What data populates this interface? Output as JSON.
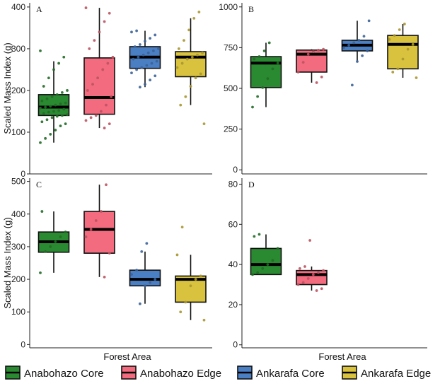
{
  "chart_data": {
    "type": "boxplot",
    "ylabel": "Scaled Mass Index (g)",
    "xlabel": "Forest Area",
    "legend": {
      "placement": "bottom",
      "entries": [
        {
          "name": "Anabohazo Core",
          "color": "#2a8a31"
        },
        {
          "name": "Anabohazo Edge",
          "color": "#f26b7e"
        },
        {
          "name": "Ankarafa Core",
          "color": "#4b7fc4"
        },
        {
          "name": "Ankarafa Edge",
          "color": "#d9c23e"
        }
      ]
    },
    "panels": [
      {
        "label": "A",
        "ylim": [
          0,
          410
        ],
        "yticks": [
          0,
          100,
          200,
          300,
          400
        ],
        "boxes": [
          {
            "group": "Anabohazo Core",
            "whisker_low": 75,
            "q1": 140,
            "median": 160,
            "q3": 190,
            "whisker_high": 270,
            "points": [
              75,
              85,
              95,
              105,
              115,
              120,
              125,
              130,
              135,
              138,
              140,
              142,
              145,
              148,
              150,
              152,
              155,
              158,
              160,
              162,
              165,
              168,
              170,
              175,
              180,
              185,
              190,
              195,
              200,
              210,
              230,
              250,
              265,
              280,
              295
            ]
          },
          {
            "group": "Anabohazo Edge",
            "whisker_low": 110,
            "q1": 143,
            "median": 183,
            "q3": 278,
            "whisker_high": 398,
            "points": [
              110,
              120,
              128,
              135,
              140,
              150,
              165,
              185,
              200,
              215,
              230,
              250,
              265,
              280,
              300,
              320,
              340,
              365,
              385,
              398
            ]
          },
          {
            "group": "Ankarafa Core",
            "whisker_low": 208,
            "q1": 253,
            "median": 280,
            "q3": 305,
            "whisker_high": 343,
            "points": [
              208,
              215,
              225,
              235,
              242,
              250,
              255,
              260,
              265,
              270,
              275,
              280,
              285,
              290,
              295,
              300,
              305,
              310,
              318,
              325,
              333,
              340,
              343
            ]
          },
          {
            "group": "Ankarafa Edge",
            "whisker_low": 165,
            "q1": 233,
            "median": 280,
            "q3": 293,
            "whisker_high": 373,
            "points": [
              120,
              165,
              185,
              210,
              230,
              240,
              255,
              265,
              275,
              280,
              285,
              290,
              300,
              320,
              345,
              373,
              388
            ]
          }
        ]
      },
      {
        "label": "B",
        "ylim": [
          -25,
          1025
        ],
        "yticks": [
          0,
          250,
          500,
          750,
          1000
        ],
        "boxes": [
          {
            "group": "Anabohazo Core",
            "whisker_low": 385,
            "q1": 505,
            "median": 655,
            "q3": 695,
            "whisker_high": 780,
            "points": [
              385,
              450,
              505,
              560,
              620,
              655,
              680,
              695,
              730,
              780
            ]
          },
          {
            "group": "Anabohazo Edge",
            "whisker_low": 535,
            "q1": 600,
            "median": 710,
            "q3": 735,
            "whisker_high": 740,
            "points": [
              535,
              570,
              600,
              660,
              710,
              725,
              735,
              740
            ]
          },
          {
            "group": "Ankarafa Core",
            "whisker_low": 665,
            "q1": 730,
            "median": 765,
            "q3": 795,
            "whisker_high": 915,
            "points": [
              520,
              665,
              700,
              730,
              750,
              765,
              780,
              795,
              820,
              915
            ]
          },
          {
            "group": "Ankarafa Edge",
            "whisker_low": 565,
            "q1": 620,
            "median": 770,
            "q3": 825,
            "whisker_high": 895,
            "points": [
              565,
              600,
              620,
              680,
              740,
              770,
              800,
              825,
              860,
              895
            ]
          }
        ]
      },
      {
        "label": "C",
        "ylim": [
          -10,
          510
        ],
        "yticks": [
          0,
          100,
          200,
          300,
          400,
          500
        ],
        "boxes": [
          {
            "group": "Anabohazo Core",
            "whisker_low": 220,
            "q1": 283,
            "median": 315,
            "q3": 345,
            "whisker_high": 408,
            "points": [
              220,
              285,
              300,
              315,
              330,
              345,
              408
            ]
          },
          {
            "group": "Anabohazo Edge",
            "whisker_low": 207,
            "q1": 280,
            "median": 353,
            "q3": 408,
            "whisker_high": 490,
            "points": [
              207,
              280,
              330,
              353,
              380,
              408,
              490
            ]
          },
          {
            "group": "Ankarafa Core",
            "whisker_low": 125,
            "q1": 180,
            "median": 200,
            "q3": 228,
            "whisker_high": 285,
            "points": [
              125,
              180,
              190,
              200,
              215,
              228,
              285,
              310
            ]
          },
          {
            "group": "Ankarafa Edge",
            "whisker_low": 75,
            "q1": 130,
            "median": 200,
            "q3": 210,
            "whisker_high": 275,
            "points": [
              75,
              100,
              130,
              180,
              200,
              210,
              275,
              360
            ]
          }
        ]
      },
      {
        "label": "D",
        "ylim": [
          -1.5,
          83
        ],
        "yticks": [
          0,
          20,
          40,
          60,
          80
        ],
        "boxes": [
          {
            "group": "Anabohazo Core",
            "whisker_low": 35,
            "q1": 35,
            "median": 40,
            "q3": 48,
            "whisker_high": 55,
            "points": [
              35,
              36,
              38,
              40,
              42,
              48,
              54,
              55
            ]
          },
          {
            "group": "Anabohazo Edge",
            "whisker_low": 27,
            "q1": 30,
            "median": 35,
            "q3": 37,
            "whisker_high": 39,
            "points": [
              27,
              28,
              30,
              31,
              33,
              35,
              36,
              37,
              38,
              39,
              52
            ]
          }
        ]
      }
    ]
  }
}
